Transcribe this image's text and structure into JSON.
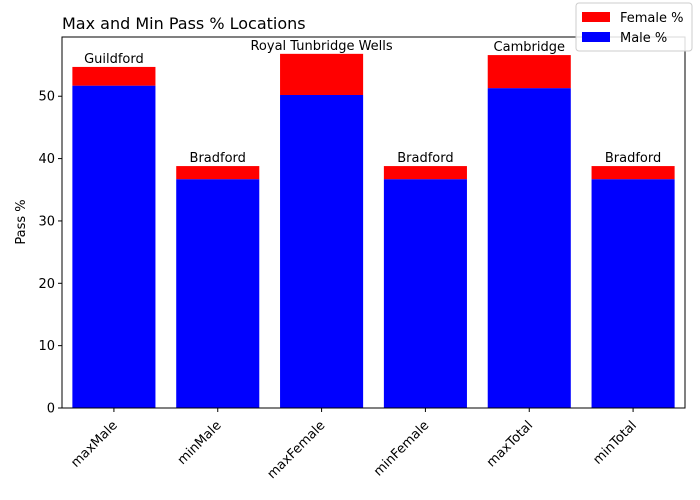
{
  "chart_data": {
    "type": "bar",
    "stacked": true,
    "title": "Max and Min Pass % Locations",
    "xlabel": "",
    "ylabel": "Pass %",
    "ylim": [
      0,
      59.5
    ],
    "yticks": [
      0,
      10,
      20,
      30,
      40,
      50
    ],
    "grid": false,
    "legend_placement": "top-right",
    "categories": [
      "maxMale",
      "minMale",
      "maxFemale",
      "minFemale",
      "maxTotal",
      "minTotal"
    ],
    "bar_labels": [
      "Guildford",
      "Bradford",
      "Royal Tunbridge Wells",
      "Bradford",
      "Cambridge",
      "Bradford"
    ],
    "series": [
      {
        "name": "Male %",
        "color": "#0000ff",
        "values": [
          51.7,
          36.7,
          50.2,
          36.7,
          51.3,
          36.7
        ]
      },
      {
        "name": "Female %",
        "color": "#ff0000",
        "values": [
          3.0,
          2.1,
          6.6,
          2.1,
          5.3,
          2.1
        ]
      }
    ],
    "legend_order": [
      "Female %",
      "Male %"
    ]
  }
}
